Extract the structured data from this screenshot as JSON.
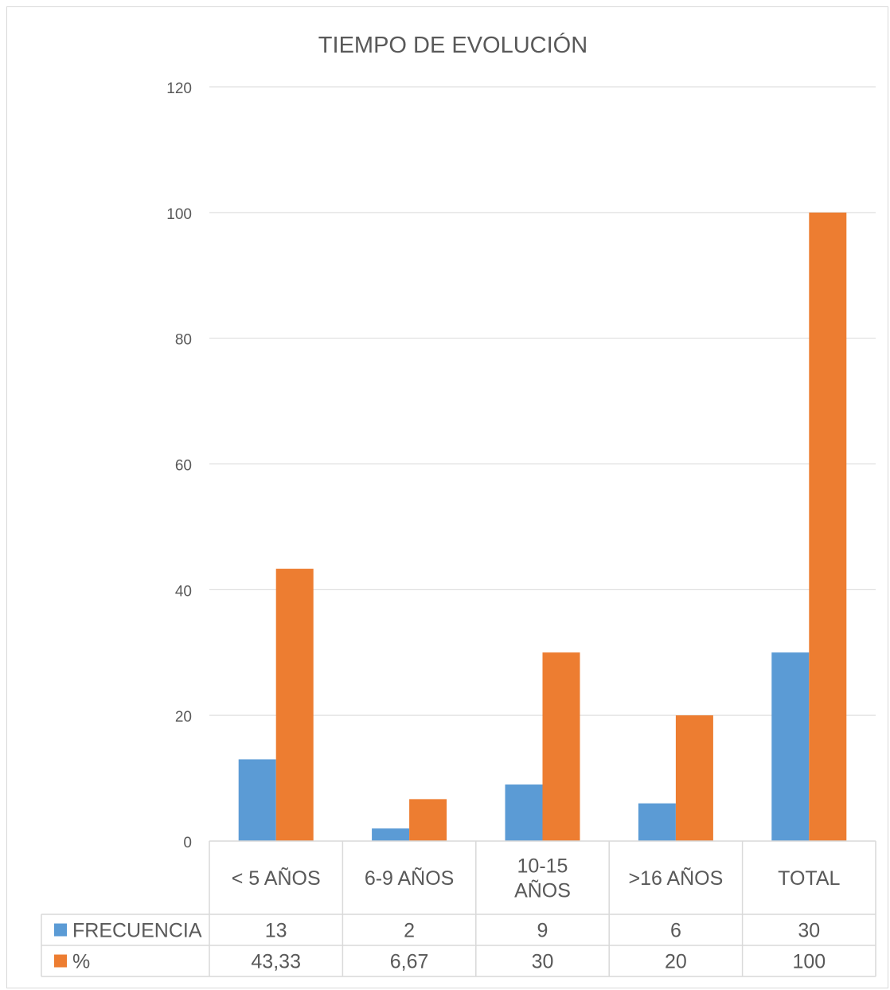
{
  "chart_data": {
    "type": "bar",
    "title": "TIEMPO DE EVOLUCIÓN",
    "xlabel": "",
    "ylabel": "",
    "ylim": [
      0,
      120
    ],
    "yticks": [
      0,
      20,
      40,
      60,
      80,
      100,
      120
    ],
    "grid": true,
    "legend": "bottom data table",
    "categories": [
      [
        "< 5 AÑOS"
      ],
      [
        "6-9 AÑOS"
      ],
      [
        "10-15",
        "AÑOS"
      ],
      [
        ">16 AÑOS"
      ],
      [
        "TOTAL"
      ]
    ],
    "series": [
      {
        "name": "FRECUENCIA",
        "color": "#5B9BD5",
        "values": [
          13,
          2,
          9,
          6,
          30
        ],
        "labels": [
          "13",
          "2",
          "9",
          "6",
          "30"
        ]
      },
      {
        "name": "%",
        "color": "#ED7D31",
        "values": [
          43.33,
          6.67,
          30,
          20,
          100
        ],
        "labels": [
          "43,33",
          "6,67",
          "30",
          "20",
          "100"
        ]
      }
    ]
  }
}
